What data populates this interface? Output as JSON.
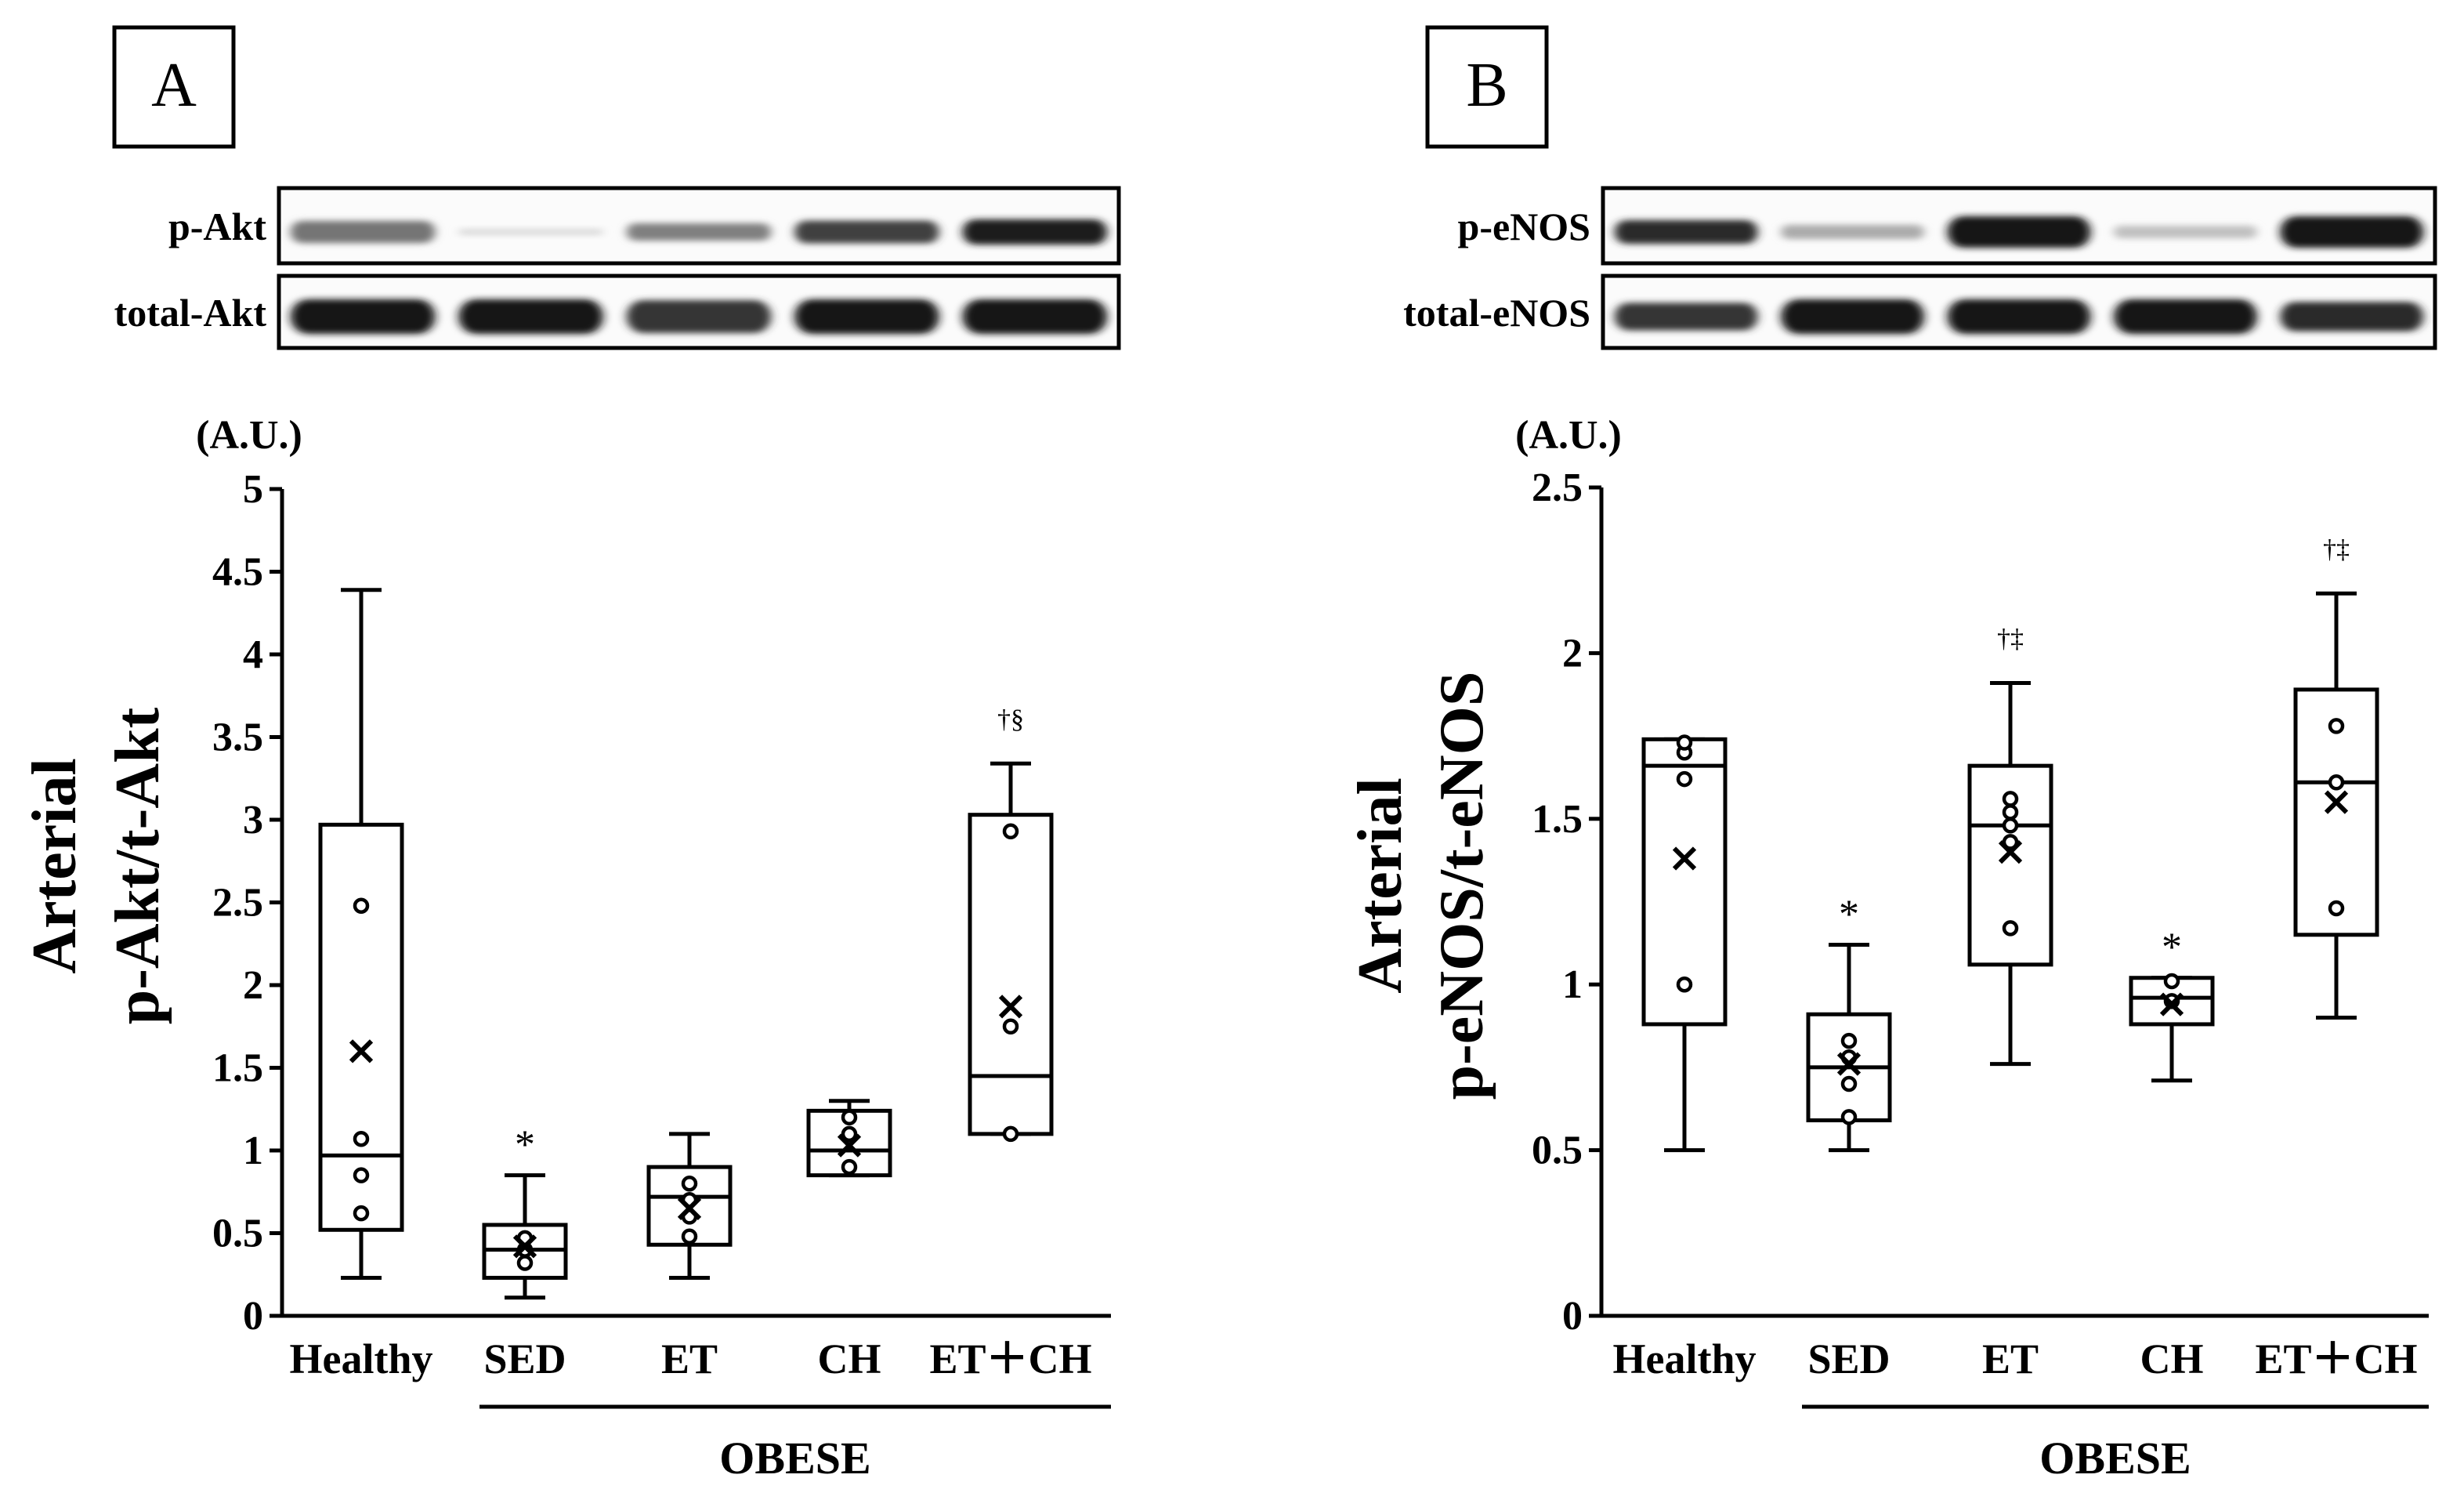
{
  "figure": {
    "background": "#ffffff",
    "ink": "#000000"
  },
  "chart_data": [
    {
      "panel": "A",
      "type": "box",
      "title": "",
      "blot_labels": [
        "p-Akt",
        "total-Akt"
      ],
      "unit_label": "(A.U.)",
      "ylabel": [
        "Arterial",
        "p-Akt/t-Akt"
      ],
      "xlabel": "",
      "group_label": "OBESE",
      "ylim": [
        0,
        5
      ],
      "yticks": [
        "0",
        "0.5",
        "1",
        "1.5",
        "2",
        "2.5",
        "3",
        "3.5",
        "4",
        "4.5",
        "5"
      ],
      "grid": false,
      "categories": [
        "Healthy",
        "SED",
        "ET",
        "CH",
        "ET＋CH"
      ],
      "boxes": [
        {
          "label": "Healthy",
          "min": 0.23,
          "q1": 0.52,
          "median": 0.97,
          "q3": 2.97,
          "max": 4.39,
          "mean": 1.6,
          "points": [
            0.62,
            0.85,
            1.07,
            2.48
          ],
          "annotation": ""
        },
        {
          "label": "SED",
          "min": 0.11,
          "q1": 0.23,
          "median": 0.4,
          "q3": 0.55,
          "max": 0.85,
          "mean": 0.42,
          "points": [
            0.32,
            0.4,
            0.47
          ],
          "annotation": "*"
        },
        {
          "label": "ET",
          "min": 0.23,
          "q1": 0.43,
          "median": 0.72,
          "q3": 0.9,
          "max": 1.1,
          "mean": 0.65,
          "points": [
            0.48,
            0.6,
            0.7,
            0.8
          ],
          "annotation": ""
        },
        {
          "label": "CH",
          "min": 0.85,
          "q1": 0.85,
          "median": 1.0,
          "q3": 1.24,
          "max": 1.3,
          "mean": 1.03,
          "points": [
            0.9,
            1.1,
            1.2
          ],
          "annotation": ""
        },
        {
          "label": "ET＋CH",
          "min": 1.1,
          "q1": 1.1,
          "median": 1.45,
          "q3": 3.03,
          "max": 3.34,
          "mean": 1.87,
          "points": [
            1.1,
            1.75,
            2.93
          ],
          "annotation": "†§"
        }
      ]
    },
    {
      "panel": "B",
      "type": "box",
      "title": "",
      "blot_labels": [
        "p-eNOS",
        "total-eNOS"
      ],
      "unit_label": "(A.U.)",
      "ylabel": [
        "Arterial",
        "p-eNOS/t-eNOS"
      ],
      "xlabel": "",
      "group_label": "OBESE",
      "ylim": [
        0,
        2.5
      ],
      "yticks": [
        "0",
        "0.5",
        "1",
        "1.5",
        "2",
        "2.5"
      ],
      "grid": false,
      "categories": [
        "Healthy",
        "SED",
        "ET",
        "CH",
        "ET＋CH"
      ],
      "boxes": [
        {
          "label": "Healthy",
          "min": 0.5,
          "q1": 0.88,
          "median": 1.66,
          "q3": 1.74,
          "max": 1.74,
          "mean": 1.38,
          "points": [
            1.0,
            1.62,
            1.7,
            1.73
          ],
          "annotation": ""
        },
        {
          "label": "SED",
          "min": 0.5,
          "q1": 0.59,
          "median": 0.75,
          "q3": 0.91,
          "max": 1.12,
          "mean": 0.76,
          "points": [
            0.6,
            0.7,
            0.78,
            0.83
          ],
          "annotation": "*"
        },
        {
          "label": "ET",
          "min": 0.76,
          "q1": 1.06,
          "median": 1.48,
          "q3": 1.66,
          "max": 1.91,
          "mean": 1.4,
          "points": [
            1.17,
            1.43,
            1.48,
            1.52,
            1.56
          ],
          "annotation": "†‡"
        },
        {
          "label": "CH",
          "min": 0.71,
          "q1": 0.88,
          "median": 0.96,
          "q3": 1.02,
          "max": 1.02,
          "mean": 0.94,
          "points": [
            0.95,
            1.01
          ],
          "annotation": "*"
        },
        {
          "label": "ET＋CH",
          "min": 0.9,
          "q1": 1.15,
          "median": 1.61,
          "q3": 1.89,
          "max": 2.18,
          "mean": 1.55,
          "points": [
            1.23,
            1.61,
            1.78
          ],
          "annotation": "†‡"
        }
      ]
    }
  ]
}
